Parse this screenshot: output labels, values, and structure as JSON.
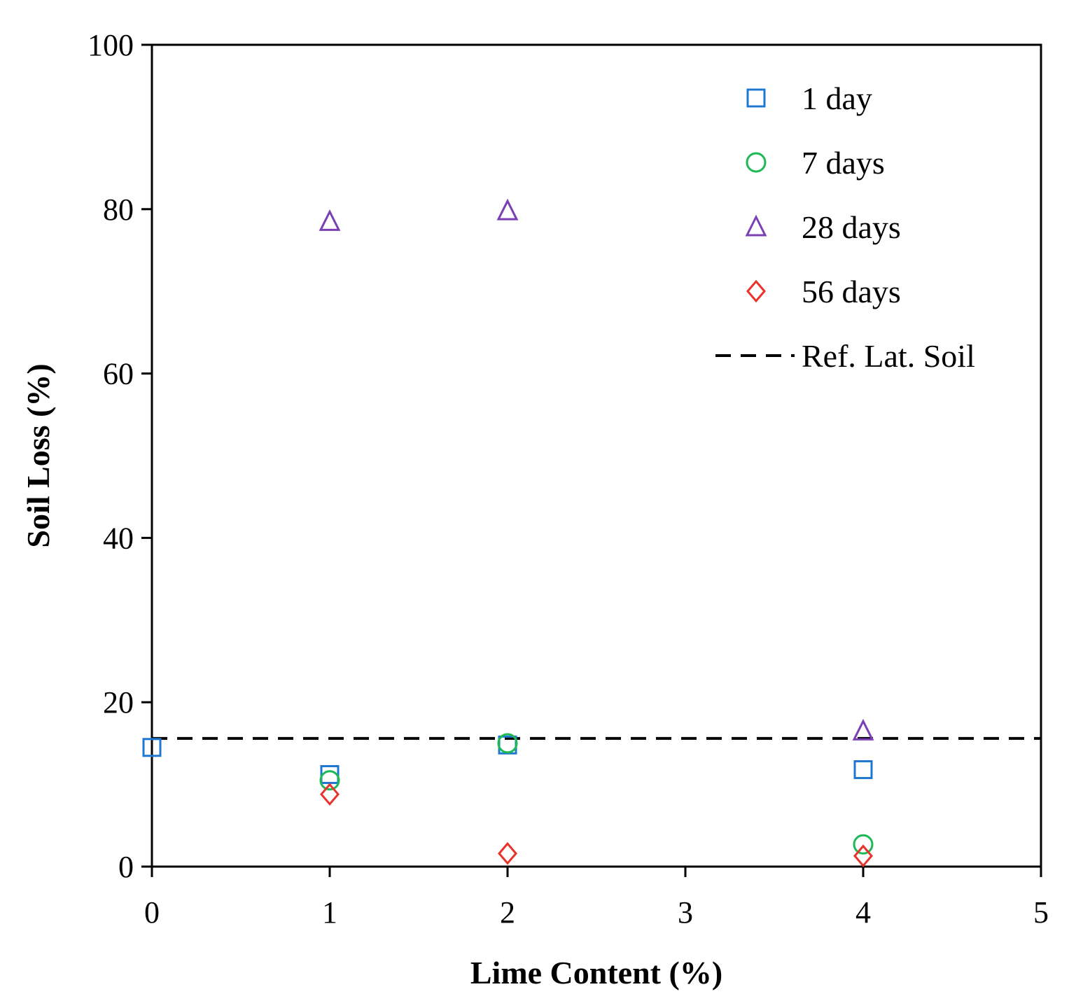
{
  "chart_data": {
    "type": "scatter",
    "title": "",
    "xlabel": "Lime Content (%)",
    "ylabel": "Soil Loss (%)",
    "xlim": [
      0,
      5
    ],
    "ylim": [
      0,
      100
    ],
    "xticks": [
      0,
      1,
      2,
      3,
      4,
      5
    ],
    "yticks": [
      0,
      20,
      40,
      60,
      80,
      100
    ],
    "grid": false,
    "legend_position": "top-right",
    "series": [
      {
        "name": "1 day",
        "marker": "square",
        "color": "#1F77D0",
        "points": [
          {
            "x": 0,
            "y": 14.5
          },
          {
            "x": 1,
            "y": 11.2
          },
          {
            "x": 2,
            "y": 14.8
          },
          {
            "x": 4,
            "y": 11.8
          }
        ]
      },
      {
        "name": "7 days",
        "marker": "circle",
        "color": "#1DB954",
        "points": [
          {
            "x": 1,
            "y": 10.5
          },
          {
            "x": 2,
            "y": 15.0
          },
          {
            "x": 4,
            "y": 2.7
          }
        ]
      },
      {
        "name": "28 days",
        "marker": "triangle",
        "color": "#7B3FB5",
        "points": [
          {
            "x": 1,
            "y": 78.5
          },
          {
            "x": 2,
            "y": 79.8
          },
          {
            "x": 4,
            "y": 16.5
          }
        ]
      },
      {
        "name": "56 days",
        "marker": "diamond",
        "color": "#E8322B",
        "points": [
          {
            "x": 1,
            "y": 8.8
          },
          {
            "x": 2,
            "y": 1.6
          },
          {
            "x": 4,
            "y": 1.3
          }
        ]
      }
    ],
    "reference_line": {
      "name": "Ref. Lat. Soil",
      "y": 15.6,
      "style": "dashed",
      "color": "#000000"
    }
  }
}
